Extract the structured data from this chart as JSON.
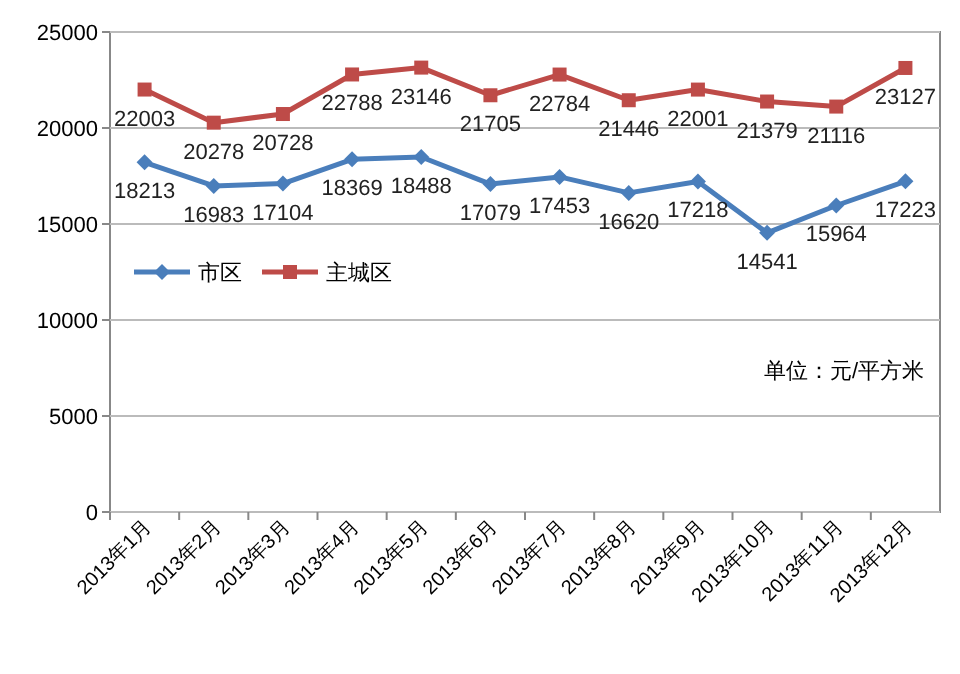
{
  "chart_data": {
    "type": "line",
    "categories": [
      "2013年1月",
      "2013年2月",
      "2013年3月",
      "2013年4月",
      "2013年5月",
      "2013年6月",
      "2013年7月",
      "2013年8月",
      "2013年9月",
      "2013年10月",
      "2013年11月",
      "2013年12月"
    ],
    "series": [
      {
        "name": "市区",
        "color": "#4a7ebb",
        "marker": "diamond",
        "values": [
          18213,
          16983,
          17104,
          18369,
          18488,
          17079,
          17453,
          16620,
          17218,
          14541,
          15964,
          17223
        ]
      },
      {
        "name": "主城区",
        "color": "#be4b48",
        "marker": "square",
        "values": [
          22003,
          20278,
          20728,
          22788,
          23146,
          21705,
          22784,
          21446,
          22001,
          21379,
          21116,
          23127
        ]
      }
    ],
    "ylim": [
      0,
      25000
    ],
    "yticks": [
      0,
      5000,
      10000,
      15000,
      20000,
      25000
    ],
    "grid": "y",
    "legend": "left",
    "data_labels": true,
    "annotations": [
      "单位：元/平方米"
    ]
  }
}
